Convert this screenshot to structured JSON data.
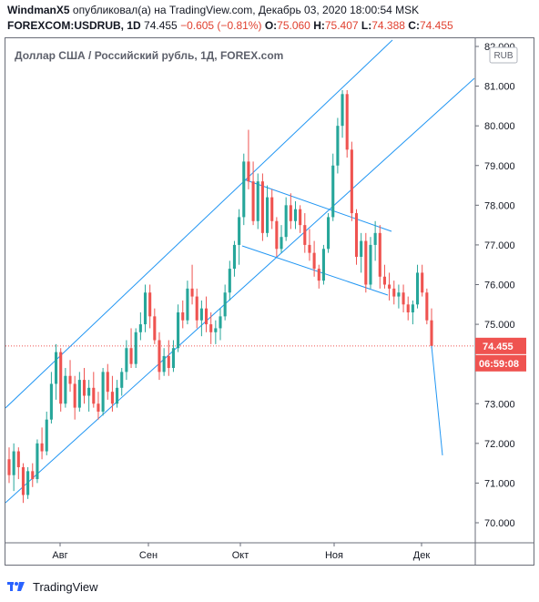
{
  "header": {
    "author": "WindmanX5",
    "published_text": "опубликовал(а) на TradingView.com, Декабрь 03, 2020 18:00:54 MSK",
    "symbol": "FOREXCOM:USDRUB, 1D",
    "last": "74.455",
    "change": "−0.605 (−0.81%)",
    "o_label": "O:",
    "o_value": "75.060",
    "h_label": "H:",
    "h_value": "75.407",
    "l_label": "L:",
    "l_value": "74.388",
    "c_label": "C:",
    "c_value": "74.455"
  },
  "footer": {
    "brand": "TradingView",
    "logo_icon": "tradingview-logo-icon"
  },
  "colors": {
    "up": "#26a69a",
    "down": "#ef5350",
    "trendline": "#2196f3",
    "price_label_bg": "#ef5350",
    "axis_text": "#131722",
    "border": "#6a6d78"
  },
  "chart_data": {
    "type": "candlestick",
    "title": "Доллар США / Российский рубль, 1Д, FOREX.com",
    "currency_badge": "RUB",
    "y_ticks": [
      "70.000",
      "71.000",
      "72.000",
      "73.000",
      "74.000",
      "75.000",
      "76.000",
      "77.000",
      "78.000",
      "79.000",
      "80.000",
      "81.000",
      "82.000"
    ],
    "x_ticks": [
      "Авг",
      "Сен",
      "Окт",
      "Ноя",
      "Дек"
    ],
    "ylim": [
      69.5,
      82.3
    ],
    "last_price": 74.455,
    "last_price_label": "74.455",
    "countdown_label": "06:59:08",
    "ohlc": [
      [
        71.6,
        71.9,
        71.0,
        71.2
      ],
      [
        71.2,
        72.0,
        70.8,
        71.8
      ],
      [
        71.8,
        71.9,
        71.1,
        71.4
      ],
      [
        71.4,
        71.5,
        70.5,
        70.7
      ],
      [
        70.7,
        71.4,
        70.6,
        71.3
      ],
      [
        71.3,
        71.5,
        70.9,
        71.1
      ],
      [
        71.1,
        72.1,
        71.0,
        72.0
      ],
      [
        72.0,
        72.4,
        71.6,
        71.8
      ],
      [
        71.8,
        72.8,
        71.7,
        72.6
      ],
      [
        72.6,
        73.8,
        72.5,
        73.5
      ],
      [
        73.5,
        74.5,
        73.1,
        74.3
      ],
      [
        74.3,
        74.4,
        72.8,
        73.0
      ],
      [
        73.0,
        73.9,
        72.9,
        73.7
      ],
      [
        73.7,
        74.1,
        73.3,
        73.5
      ],
      [
        73.5,
        73.7,
        72.6,
        72.9
      ],
      [
        72.9,
        73.8,
        72.8,
        73.6
      ],
      [
        73.6,
        73.9,
        73.0,
        73.2
      ],
      [
        73.2,
        73.6,
        72.8,
        73.4
      ],
      [
        73.4,
        73.8,
        72.9,
        73.0
      ],
      [
        73.0,
        73.3,
        72.6,
        72.8
      ],
      [
        72.8,
        73.9,
        72.7,
        73.8
      ],
      [
        73.8,
        74.0,
        73.1,
        73.3
      ],
      [
        73.3,
        73.7,
        72.8,
        73.0
      ],
      [
        73.0,
        73.6,
        72.9,
        73.4
      ],
      [
        73.4,
        73.9,
        73.2,
        73.8
      ],
      [
        73.8,
        74.6,
        73.6,
        74.4
      ],
      [
        74.4,
        74.9,
        73.9,
        74.0
      ],
      [
        74.0,
        74.9,
        73.9,
        74.8
      ],
      [
        74.8,
        75.3,
        74.6,
        75.0
      ],
      [
        75.0,
        76.0,
        74.8,
        75.8
      ],
      [
        75.8,
        76.0,
        74.9,
        75.2
      ],
      [
        75.2,
        75.4,
        74.5,
        74.6
      ],
      [
        74.6,
        74.8,
        73.6,
        73.8
      ],
      [
        73.8,
        74.4,
        73.7,
        74.2
      ],
      [
        74.2,
        74.6,
        73.7,
        73.9
      ],
      [
        73.9,
        74.6,
        73.8,
        74.4
      ],
      [
        74.4,
        75.5,
        74.3,
        75.3
      ],
      [
        75.3,
        75.6,
        74.9,
        75.1
      ],
      [
        75.1,
        76.1,
        75.0,
        75.9
      ],
      [
        75.9,
        76.5,
        75.5,
        75.7
      ],
      [
        75.7,
        75.9,
        74.9,
        75.1
      ],
      [
        75.1,
        75.6,
        74.7,
        75.4
      ],
      [
        75.4,
        75.7,
        74.8,
        75.0
      ],
      [
        75.0,
        75.3,
        74.5,
        74.8
      ],
      [
        74.8,
        75.1,
        74.5,
        74.9
      ],
      [
        74.9,
        75.4,
        74.6,
        75.2
      ],
      [
        75.2,
        76.0,
        75.1,
        75.8
      ],
      [
        75.8,
        76.6,
        75.6,
        76.4
      ],
      [
        76.4,
        77.1,
        76.2,
        77.0
      ],
      [
        77.0,
        77.9,
        76.5,
        77.7
      ],
      [
        77.7,
        79.3,
        77.5,
        79.1
      ],
      [
        79.1,
        79.9,
        78.4,
        78.6
      ],
      [
        78.6,
        79.1,
        77.5,
        77.6
      ],
      [
        77.6,
        78.8,
        77.4,
        78.6
      ],
      [
        78.6,
        78.8,
        77.1,
        77.3
      ],
      [
        77.3,
        78.5,
        77.2,
        78.2
      ],
      [
        78.2,
        78.4,
        77.4,
        77.6
      ],
      [
        77.6,
        77.7,
        76.7,
        76.9
      ],
      [
        76.9,
        77.5,
        76.8,
        77.2
      ],
      [
        77.2,
        78.2,
        77.1,
        78.0
      ],
      [
        78.0,
        78.3,
        77.4,
        77.6
      ],
      [
        77.6,
        78.1,
        77.4,
        77.9
      ],
      [
        77.9,
        78.0,
        77.3,
        77.5
      ],
      [
        77.5,
        77.8,
        76.8,
        77.0
      ],
      [
        77.0,
        77.4,
        76.6,
        76.8
      ],
      [
        76.8,
        77.1,
        76.2,
        76.4
      ],
      [
        76.4,
        76.5,
        75.9,
        76.1
      ],
      [
        76.1,
        77.0,
        76.0,
        76.9
      ],
      [
        76.9,
        77.8,
        76.8,
        77.7
      ],
      [
        77.7,
        79.3,
        77.6,
        79.0
      ],
      [
        79.0,
        80.2,
        78.8,
        80.0
      ],
      [
        80.0,
        80.9,
        79.7,
        80.8
      ],
      [
        80.8,
        80.9,
        79.2,
        79.4
      ],
      [
        79.4,
        79.6,
        77.6,
        77.8
      ],
      [
        77.8,
        77.9,
        76.5,
        76.7
      ],
      [
        76.7,
        77.3,
        76.3,
        77.1
      ],
      [
        77.1,
        77.3,
        75.8,
        76.0
      ],
      [
        76.0,
        77.2,
        75.9,
        77.0
      ],
      [
        77.0,
        77.6,
        76.6,
        77.3
      ],
      [
        77.3,
        77.5,
        75.9,
        76.2
      ],
      [
        76.2,
        76.5,
        75.9,
        76.0
      ],
      [
        76.0,
        76.3,
        75.6,
        75.9
      ],
      [
        75.9,
        76.1,
        75.5,
        75.7
      ],
      [
        75.7,
        76.0,
        75.4,
        75.8
      ],
      [
        75.8,
        76.0,
        75.3,
        75.5
      ],
      [
        75.5,
        75.7,
        75.1,
        75.3
      ],
      [
        75.3,
        75.6,
        75.0,
        75.5
      ],
      [
        75.5,
        76.5,
        75.4,
        76.3
      ],
      [
        76.3,
        76.5,
        75.7,
        75.8
      ],
      [
        75.8,
        75.9,
        75.0,
        75.1
      ],
      [
        75.1,
        75.4,
        74.4,
        74.455
      ]
    ],
    "forecast": [
      [
        74.455,
        71.7
      ]
    ]
  }
}
